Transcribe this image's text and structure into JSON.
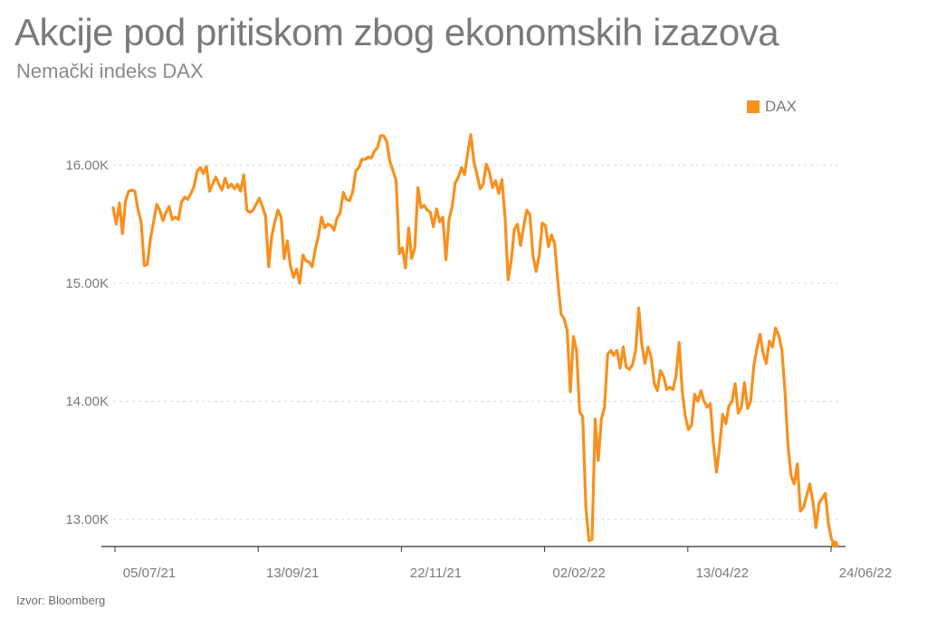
{
  "title": "Akcije pod pritiskom zbog ekonomskih izazova",
  "subtitle": "Nemački indeks DAX",
  "source": "Izvor: Bloomberg",
  "colors": {
    "line": "#f7901e",
    "grid": "#d9d9d9",
    "axis": "#333333",
    "text": "#7a7a7a"
  },
  "chart_data": {
    "type": "line",
    "title": "Akcije pod pritiskom zbog ekonomskih izazova",
    "subtitle": "Nemački indeks DAX",
    "xlabel": "",
    "ylabel": "",
    "ylim": [
      12770,
      16250
    ],
    "y_ticks": [
      13000,
      14000,
      15000,
      16000
    ],
    "y_tick_labels": [
      "13.00K",
      "14.00K",
      "15.00K",
      "16.00K"
    ],
    "x_tick_labels": [
      "05/07/21",
      "13/09/21",
      "22/11/21",
      "02/02/22",
      "13/04/22",
      "24/06/22"
    ],
    "legend": {
      "position": "top-right",
      "entries": [
        "DAX"
      ]
    },
    "grid": true,
    "series": [
      {
        "name": "DAX",
        "values": [
          15640,
          15500,
          15680,
          15420,
          15700,
          15780,
          15790,
          15780,
          15620,
          15520,
          15150,
          15160,
          15380,
          15520,
          15670,
          15620,
          15530,
          15600,
          15650,
          15540,
          15560,
          15540,
          15690,
          15730,
          15710,
          15760,
          15820,
          15950,
          15980,
          15930,
          15990,
          15780,
          15840,
          15900,
          15840,
          15790,
          15890,
          15810,
          15840,
          15800,
          15840,
          15780,
          15920,
          15620,
          15600,
          15620,
          15670,
          15720,
          15650,
          15570,
          15140,
          15400,
          15520,
          15620,
          15560,
          15210,
          15360,
          15150,
          15050,
          15120,
          15000,
          15240,
          15190,
          15180,
          15140,
          15290,
          15400,
          15560,
          15470,
          15500,
          15490,
          15450,
          15550,
          15600,
          15770,
          15710,
          15700,
          15770,
          15950,
          15980,
          16050,
          16050,
          16070,
          16060,
          16120,
          16150,
          16250,
          16250,
          16200,
          16030,
          15950,
          15870,
          15250,
          15300,
          15130,
          15470,
          15210,
          15300,
          15810,
          15640,
          15660,
          15620,
          15600,
          15480,
          15630,
          15520,
          15560,
          15200,
          15540,
          15650,
          15850,
          15900,
          15980,
          15920,
          16100,
          16260,
          16030,
          15920,
          15800,
          15840,
          16010,
          15940,
          15810,
          15870,
          15760,
          15880,
          15560,
          15030,
          15190,
          15460,
          15500,
          15320,
          15480,
          15620,
          15580,
          15230,
          15100,
          15230,
          15510,
          15490,
          15310,
          15410,
          15330,
          15010,
          14740,
          14700,
          14600,
          14080,
          14550,
          14430,
          13910,
          13870,
          13100,
          12820,
          12830,
          13850,
          13500,
          13850,
          13950,
          14400,
          14430,
          14390,
          14430,
          14280,
          14460,
          14290,
          14270,
          14310,
          14430,
          14790,
          14480,
          14320,
          14460,
          14370,
          14150,
          14090,
          14260,
          14210,
          14100,
          14120,
          14100,
          14220,
          14500,
          14080,
          13870,
          13760,
          13800,
          14060,
          14000,
          14090,
          14000,
          13950,
          13980,
          13650,
          13400,
          13620,
          13890,
          13810,
          13960,
          14000,
          14150,
          13900,
          13950,
          14160,
          13940,
          14000,
          14300,
          14450,
          14570,
          14410,
          14320,
          14510,
          14460,
          14620,
          14560,
          14440,
          14100,
          13620,
          13370,
          13300,
          13470,
          13070,
          13100,
          13200,
          13300,
          13150,
          12930,
          13140,
          13180,
          13220,
          12960,
          12830,
          12790
        ]
      }
    ]
  }
}
